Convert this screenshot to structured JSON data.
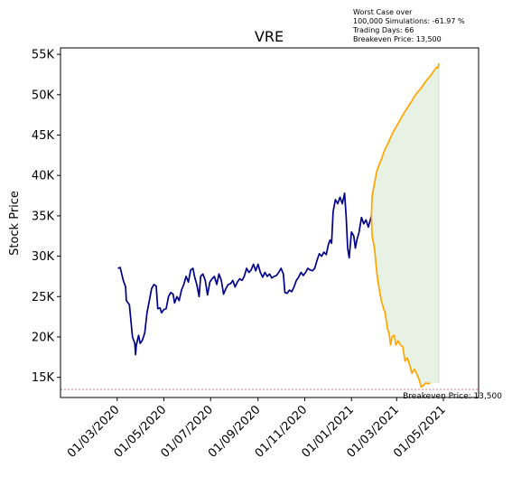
{
  "chart_data": {
    "type": "line",
    "title": "VRE",
    "ylabel": "Stock Price",
    "xlabel": "",
    "annotation_lines": [
      "Worst Case over",
      "100,000 Simulations: -61.97 %",
      "Trading Days: 66",
      "Breakeven Price: 13,500"
    ],
    "breakeven": {
      "value": 13500,
      "label": "Breakeven Price: 13,500"
    },
    "ylim": [
      12500,
      55800
    ],
    "xlim": [
      "2019-12-18",
      "2021-06-16"
    ],
    "y_ticks": [
      {
        "value": 15000,
        "label": "15K"
      },
      {
        "value": 20000,
        "label": "20K"
      },
      {
        "value": 25000,
        "label": "25K"
      },
      {
        "value": 30000,
        "label": "30K"
      },
      {
        "value": 35000,
        "label": "35K"
      },
      {
        "value": 40000,
        "label": "40K"
      },
      {
        "value": 45000,
        "label": "45K"
      },
      {
        "value": 50000,
        "label": "50K"
      },
      {
        "value": 55000,
        "label": "55K"
      }
    ],
    "x_ticks": [
      {
        "date": "2020-03-01",
        "label": "01/03/2020"
      },
      {
        "date": "2020-05-01",
        "label": "01/05/2020"
      },
      {
        "date": "2020-07-01",
        "label": "01/07/2020"
      },
      {
        "date": "2020-09-01",
        "label": "01/09/2020"
      },
      {
        "date": "2020-11-01",
        "label": "01/11/2020"
      },
      {
        "date": "2021-01-01",
        "label": "01/01/2021"
      },
      {
        "date": "2021-03-01",
        "label": "01/03/2021"
      },
      {
        "date": "2021-05-01",
        "label": "01/05/2021"
      }
    ],
    "series": [
      {
        "color": "#00008b",
        "points": [
          [
            "2020-03-02",
            28500
          ],
          [
            "2020-03-05",
            28600
          ],
          [
            "2020-03-09",
            27000
          ],
          [
            "2020-03-12",
            26200
          ],
          [
            "2020-03-13",
            24500
          ],
          [
            "2020-03-17",
            24000
          ],
          [
            "2020-03-19",
            22000
          ],
          [
            "2020-03-21",
            20000
          ],
          [
            "2020-03-24",
            19200
          ],
          [
            "2020-03-25",
            17800
          ],
          [
            "2020-03-26",
            19000
          ],
          [
            "2020-03-29",
            20200
          ],
          [
            "2020-03-31",
            19200
          ],
          [
            "2020-04-03",
            19600
          ],
          [
            "2020-04-06",
            20500
          ],
          [
            "2020-04-09",
            23000
          ],
          [
            "2020-04-12",
            24500
          ],
          [
            "2020-04-15",
            26000
          ],
          [
            "2020-04-18",
            26500
          ],
          [
            "2020-04-21",
            26300
          ],
          [
            "2020-04-23",
            23500
          ],
          [
            "2020-04-26",
            23600
          ],
          [
            "2020-04-28",
            23000
          ],
          [
            "2020-05-01",
            23400
          ],
          [
            "2020-05-04",
            23500
          ],
          [
            "2020-05-07",
            25000
          ],
          [
            "2020-05-10",
            25500
          ],
          [
            "2020-05-13",
            25300
          ],
          [
            "2020-05-15",
            24200
          ],
          [
            "2020-05-18",
            25000
          ],
          [
            "2020-05-21",
            24500
          ],
          [
            "2020-05-24",
            25800
          ],
          [
            "2020-05-27",
            26500
          ],
          [
            "2020-05-30",
            27500
          ],
          [
            "2020-06-02",
            26800
          ],
          [
            "2020-06-05",
            28300
          ],
          [
            "2020-06-08",
            28500
          ],
          [
            "2020-06-10",
            27500
          ],
          [
            "2020-06-13",
            26500
          ],
          [
            "2020-06-16",
            25000
          ],
          [
            "2020-06-18",
            27500
          ],
          [
            "2020-06-21",
            27800
          ],
          [
            "2020-06-24",
            27000
          ],
          [
            "2020-06-27",
            25200
          ],
          [
            "2020-06-30",
            26800
          ],
          [
            "2020-07-03",
            27200
          ],
          [
            "2020-07-06",
            27500
          ],
          [
            "2020-07-09",
            26500
          ],
          [
            "2020-07-12",
            27800
          ],
          [
            "2020-07-15",
            27000
          ],
          [
            "2020-07-18",
            25300
          ],
          [
            "2020-07-21",
            26000
          ],
          [
            "2020-07-24",
            26500
          ],
          [
            "2020-07-27",
            26600
          ],
          [
            "2020-07-30",
            27000
          ],
          [
            "2020-08-02",
            26200
          ],
          [
            "2020-08-05",
            26800
          ],
          [
            "2020-08-08",
            27200
          ],
          [
            "2020-08-11",
            27000
          ],
          [
            "2020-08-14",
            27500
          ],
          [
            "2020-08-17",
            28500
          ],
          [
            "2020-08-20",
            28000
          ],
          [
            "2020-08-23",
            28300
          ],
          [
            "2020-08-26",
            29000
          ],
          [
            "2020-08-29",
            28200
          ],
          [
            "2020-09-01",
            29000
          ],
          [
            "2020-09-04",
            28000
          ],
          [
            "2020-09-07",
            27400
          ],
          [
            "2020-09-10",
            28000
          ],
          [
            "2020-09-13",
            27500
          ],
          [
            "2020-09-16",
            27800
          ],
          [
            "2020-09-19",
            27300
          ],
          [
            "2020-09-22",
            27500
          ],
          [
            "2020-09-25",
            27600
          ],
          [
            "2020-09-28",
            28000
          ],
          [
            "2020-10-01",
            28500
          ],
          [
            "2020-10-04",
            27800
          ],
          [
            "2020-10-06",
            25500
          ],
          [
            "2020-10-09",
            25400
          ],
          [
            "2020-10-12",
            25800
          ],
          [
            "2020-10-15",
            25600
          ],
          [
            "2020-10-18",
            26200
          ],
          [
            "2020-10-21",
            27000
          ],
          [
            "2020-10-24",
            27400
          ],
          [
            "2020-10-27",
            28000
          ],
          [
            "2020-10-30",
            27600
          ],
          [
            "2020-11-02",
            28000
          ],
          [
            "2020-11-05",
            28500
          ],
          [
            "2020-11-08",
            28300
          ],
          [
            "2020-11-11",
            28200
          ],
          [
            "2020-11-14",
            28500
          ],
          [
            "2020-11-17",
            29500
          ],
          [
            "2020-11-20",
            30300
          ],
          [
            "2020-11-23",
            30000
          ],
          [
            "2020-11-26",
            30500
          ],
          [
            "2020-11-29",
            30200
          ],
          [
            "2020-12-02",
            31500
          ],
          [
            "2020-12-04",
            32000
          ],
          [
            "2020-12-06",
            31600
          ],
          [
            "2020-12-08",
            35500
          ],
          [
            "2020-12-11",
            37000
          ],
          [
            "2020-12-14",
            36500
          ],
          [
            "2020-12-17",
            37300
          ],
          [
            "2020-12-20",
            36500
          ],
          [
            "2020-12-23",
            37800
          ],
          [
            "2020-12-25",
            35000
          ],
          [
            "2020-12-27",
            31000
          ],
          [
            "2020-12-29",
            29800
          ],
          [
            "2021-01-01",
            33000
          ],
          [
            "2021-01-04",
            32500
          ],
          [
            "2021-01-06",
            31000
          ],
          [
            "2021-01-08",
            32000
          ],
          [
            "2021-01-11",
            33000
          ],
          [
            "2021-01-14",
            34800
          ],
          [
            "2021-01-17",
            34000
          ],
          [
            "2021-01-20",
            34500
          ],
          [
            "2021-01-23",
            33600
          ],
          [
            "2021-01-27",
            35000
          ]
        ]
      },
      {
        "color": "#ffa500",
        "points": [
          [
            "2021-01-27",
            35000
          ],
          [
            "2021-01-28",
            37500
          ],
          [
            "2021-01-31",
            39000
          ],
          [
            "2021-02-03",
            40500
          ],
          [
            "2021-02-06",
            41300
          ],
          [
            "2021-02-09",
            42000
          ],
          [
            "2021-02-12",
            42800
          ],
          [
            "2021-02-15",
            43500
          ],
          [
            "2021-02-18",
            44000
          ],
          [
            "2021-02-21",
            44700
          ],
          [
            "2021-02-24",
            45300
          ],
          [
            "2021-02-27",
            45800
          ],
          [
            "2021-03-02",
            46300
          ],
          [
            "2021-03-05",
            46800
          ],
          [
            "2021-03-08",
            47300
          ],
          [
            "2021-03-11",
            47800
          ],
          [
            "2021-03-14",
            48200
          ],
          [
            "2021-03-17",
            48700
          ],
          [
            "2021-03-20",
            49100
          ],
          [
            "2021-03-23",
            49600
          ],
          [
            "2021-03-26",
            50000
          ],
          [
            "2021-03-29",
            50400
          ],
          [
            "2021-04-01",
            50700
          ],
          [
            "2021-04-04",
            51100
          ],
          [
            "2021-04-07",
            51500
          ],
          [
            "2021-04-10",
            51900
          ],
          [
            "2021-04-13",
            52200
          ],
          [
            "2021-04-16",
            52600
          ],
          [
            "2021-04-19",
            53000
          ],
          [
            "2021-04-22",
            53400
          ],
          [
            "2021-04-24",
            53300
          ],
          [
            "2021-04-25",
            53900
          ]
        ]
      },
      {
        "color": "#ffa500",
        "points": [
          [
            "2021-01-27",
            35000
          ],
          [
            "2021-01-28",
            32500
          ],
          [
            "2021-01-31",
            31000
          ],
          [
            "2021-02-03",
            28000
          ],
          [
            "2021-02-06",
            26000
          ],
          [
            "2021-02-09",
            24500
          ],
          [
            "2021-02-12",
            23500
          ],
          [
            "2021-02-14",
            23000
          ],
          [
            "2021-02-17",
            21000
          ],
          [
            "2021-02-19",
            20500
          ],
          [
            "2021-02-21",
            19000
          ],
          [
            "2021-02-23",
            20000
          ],
          [
            "2021-02-26",
            20200
          ],
          [
            "2021-02-28",
            19000
          ],
          [
            "2021-03-03",
            19500
          ],
          [
            "2021-03-06",
            19000
          ],
          [
            "2021-03-09",
            18800
          ],
          [
            "2021-03-12",
            17000
          ],
          [
            "2021-03-15",
            17400
          ],
          [
            "2021-03-18",
            16500
          ],
          [
            "2021-03-21",
            15500
          ],
          [
            "2021-03-24",
            16000
          ],
          [
            "2021-03-27",
            15500
          ],
          [
            "2021-03-30",
            14800
          ],
          [
            "2021-04-02",
            13800
          ],
          [
            "2021-04-05",
            14000
          ],
          [
            "2021-04-08",
            14300
          ],
          [
            "2021-04-11",
            14200
          ],
          [
            "2021-04-14",
            14300
          ]
        ]
      }
    ],
    "fill_band": {
      "color": "#e4f1e1"
    },
    "breakeven_color": "#d62728",
    "grid": false
  }
}
